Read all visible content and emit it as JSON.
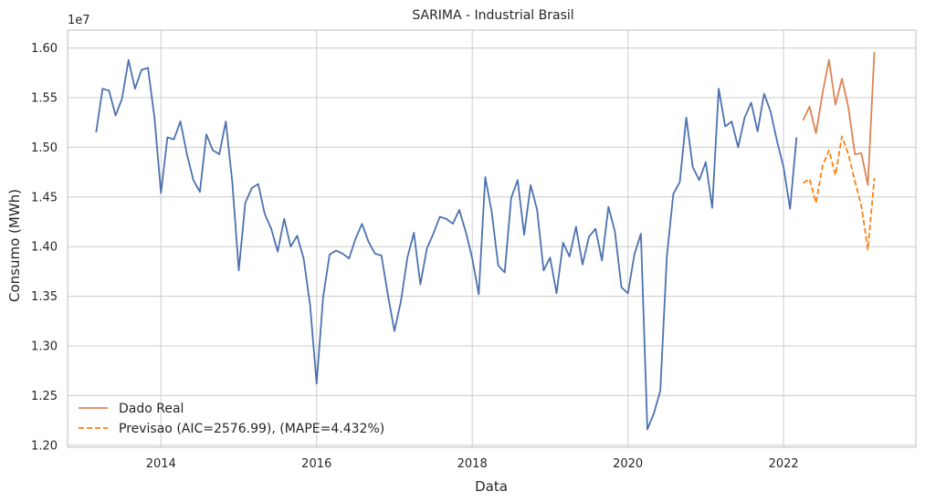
{
  "chart_data": {
    "type": "line",
    "title": "SARIMA - Industrial Brasil",
    "xlabel": "Data",
    "ylabel": "Consumo (MWh)",
    "y_offset_label": "1e7",
    "x_tick_labels": [
      "2014",
      "2016",
      "2018",
      "2020",
      "2022"
    ],
    "x_ticks": [
      2014,
      2016,
      2018,
      2020,
      2022
    ],
    "y_tick_labels": [
      "1.20",
      "1.25",
      "1.30",
      "1.35",
      "1.40",
      "1.45",
      "1.50",
      "1.55",
      "1.60"
    ],
    "y_ticks": [
      1.2,
      1.25,
      1.3,
      1.35,
      1.4,
      1.45,
      1.5,
      1.55,
      1.6
    ],
    "xlim": [
      2012.8,
      2023.7
    ],
    "ylim": [
      1.198,
      1.618
    ],
    "grid": true,
    "legend_position": "lower-left",
    "colors": {
      "train": "#4c72b0",
      "real": "#dd8452",
      "forecast": "#ff7f0e",
      "grid": "#cccccc"
    },
    "series": [
      {
        "name": "",
        "role": "train",
        "start_year": 2013,
        "start_month": 3,
        "values": [
          1.515,
          1.559,
          1.557,
          1.532,
          1.549,
          1.588,
          1.559,
          1.578,
          1.58,
          1.53,
          1.454,
          1.51,
          1.508,
          1.526,
          1.493,
          1.467,
          1.455,
          1.513,
          1.497,
          1.493,
          1.526,
          1.465,
          1.376,
          1.444,
          1.459,
          1.463,
          1.433,
          1.418,
          1.395,
          1.428,
          1.4,
          1.411,
          1.388,
          1.341,
          1.262,
          1.349,
          1.392,
          1.396,
          1.393,
          1.388,
          1.408,
          1.423,
          1.405,
          1.393,
          1.391,
          1.351,
          1.315,
          1.345,
          1.389,
          1.414,
          1.362,
          1.398,
          1.413,
          1.43,
          1.428,
          1.423,
          1.437,
          1.415,
          1.388,
          1.352,
          1.47,
          1.435,
          1.381,
          1.374,
          1.449,
          1.467,
          1.412,
          1.462,
          1.437,
          1.376,
          1.389,
          1.353,
          1.404,
          1.39,
          1.42,
          1.382,
          1.41,
          1.418,
          1.386,
          1.44,
          1.415,
          1.359,
          1.353,
          1.392,
          1.413,
          1.216,
          1.232,
          1.255,
          1.39,
          1.453,
          1.465,
          1.53,
          1.48,
          1.467,
          1.485,
          1.439,
          1.559,
          1.521,
          1.526,
          1.5,
          1.53,
          1.545,
          1.516,
          1.554,
          1.536,
          1.506,
          1.48,
          1.438,
          1.51
        ]
      },
      {
        "name": "Dado Real",
        "role": "real",
        "start_year": 2022,
        "start_month": 4,
        "values": [
          1.527,
          1.541,
          1.514,
          1.554,
          1.588,
          1.543,
          1.569,
          1.54,
          1.493,
          1.494,
          1.462,
          1.596
        ]
      },
      {
        "name": "Previsao (AIC=2576.99), (MAPE=4.432%)",
        "role": "forecast",
        "start_year": 2022,
        "start_month": 4,
        "values": [
          1.464,
          1.468,
          1.444,
          1.481,
          1.497,
          1.472,
          1.511,
          1.493,
          1.466,
          1.441,
          1.397,
          1.469
        ]
      }
    ]
  }
}
